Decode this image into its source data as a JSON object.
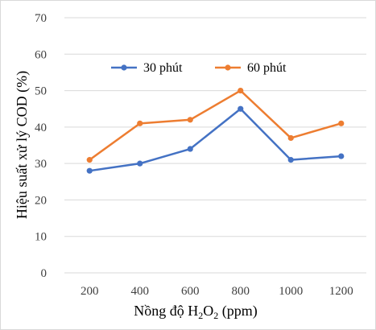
{
  "chart_data": {
    "type": "line",
    "categories": [
      "200",
      "400",
      "600",
      "800",
      "1000",
      "1200"
    ],
    "series": [
      {
        "name": "30 phút",
        "color": "#4472c4",
        "values": [
          28,
          30,
          34,
          45,
          31,
          32
        ]
      },
      {
        "name": "60 phút",
        "color": "#ed7d31",
        "values": [
          31,
          41,
          42,
          50,
          37,
          41
        ]
      }
    ],
    "title": "",
    "xlabel_main": "Nồng độ H",
    "xlabel_sub1": "2",
    "xlabel_mid": "O",
    "xlabel_sub2": "2",
    "xlabel_tail": " (ppm)",
    "ylabel": "Hiệu suất xử lý COD (%)",
    "ylim": [
      0,
      70
    ],
    "yticks": [
      "0",
      "10",
      "20",
      "30",
      "40",
      "50",
      "60",
      "70"
    ],
    "grid": true,
    "legend_position": "top-center",
    "gridline_color": "#d9d9d9"
  }
}
